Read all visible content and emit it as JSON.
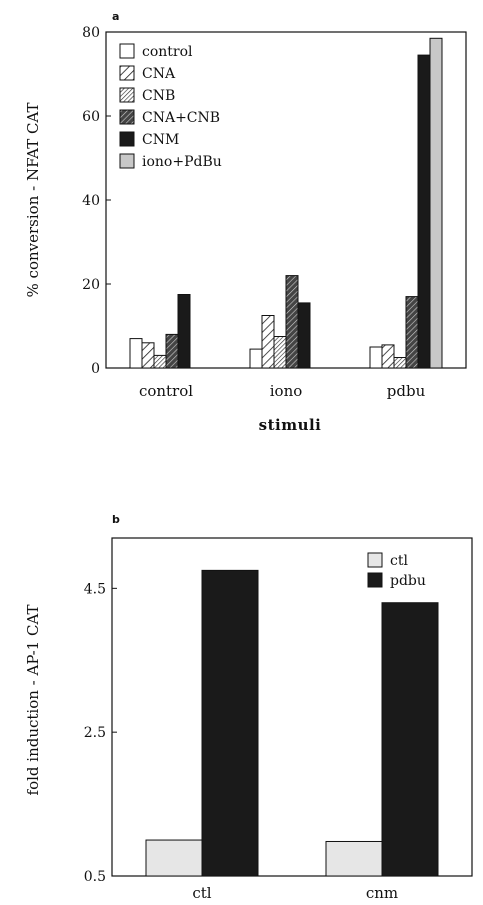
{
  "colors": {
    "control": "#ffffff",
    "CNM": "#1a1a1a",
    "iono+PdBu": "#c8c8c8",
    "ctl": "#e6e6e6",
    "pdbu": "#1a1a1a"
  },
  "chart_data": [
    {
      "panel": "a",
      "type": "bar",
      "ylabel": "% conversion - NFAT CAT",
      "xlabel": "stimuli",
      "categories": [
        "control",
        "iono",
        "pdbu"
      ],
      "ylim": [
        0,
        80
      ],
      "yticks": [
        0,
        20,
        40,
        60,
        80
      ],
      "legend_position": "top-left",
      "series": [
        {
          "name": "control",
          "pattern": "solid-white",
          "values": [
            7,
            4.5,
            5
          ]
        },
        {
          "name": "CNA",
          "pattern": "hatch-sparse",
          "values": [
            6,
            12.5,
            5.5
          ]
        },
        {
          "name": "CNB",
          "pattern": "hatch-dense",
          "values": [
            3,
            7.5,
            2.5
          ]
        },
        {
          "name": "CNA+CNB",
          "pattern": "hatch-dark",
          "values": [
            8,
            22,
            17
          ]
        },
        {
          "name": "CNM",
          "pattern": "solid-dark",
          "values": [
            17.5,
            15.5,
            74.5
          ]
        },
        {
          "name": "iono+PdBu",
          "pattern": "solid-light",
          "values": [
            null,
            null,
            78.5
          ]
        }
      ]
    },
    {
      "panel": "b",
      "type": "bar",
      "ylabel": "fold induction - AP-1 CAT",
      "xlabel": "",
      "categories": [
        "ctl",
        "cnm"
      ],
      "ylim": [
        0.5,
        5.2
      ],
      "yticks": [
        0.5,
        2.5,
        4.5
      ],
      "legend_position": "top-right",
      "series": [
        {
          "name": "ctl",
          "pattern": "solid-light",
          "values": [
            1.0,
            0.98
          ]
        },
        {
          "name": "pdbu",
          "pattern": "solid-dark",
          "values": [
            4.75,
            4.3
          ]
        }
      ]
    }
  ]
}
